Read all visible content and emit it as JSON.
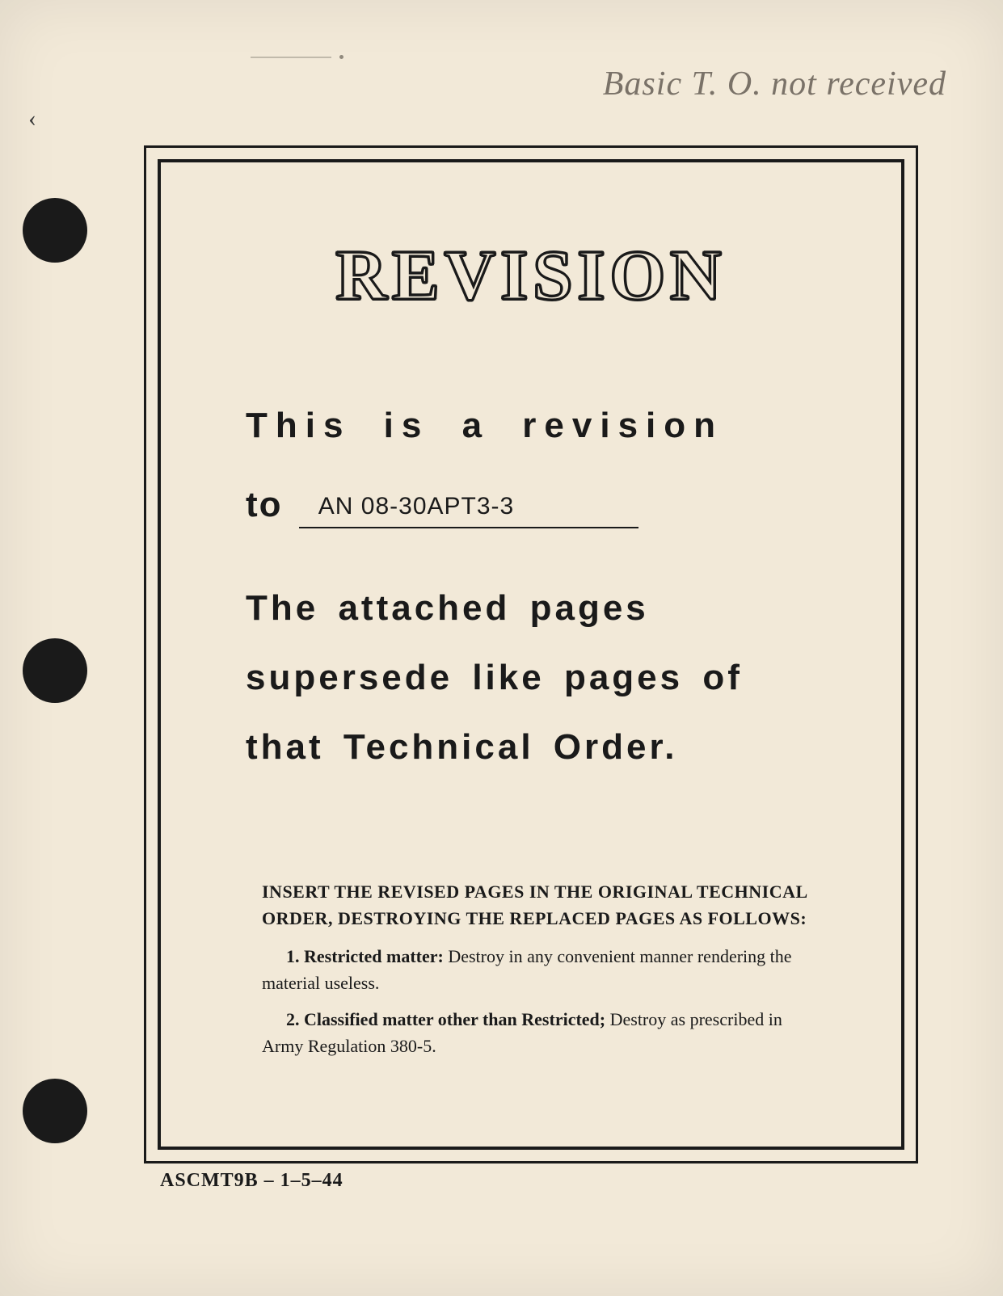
{
  "handwritten_note": "Basic T. O. not received",
  "title": "REVISION",
  "body": {
    "line1": "This is a revision",
    "to_label": "to",
    "doc_number": "AN 08-30APT3-3",
    "paragraph": "The attached pages supersede like pages of that Technical Order."
  },
  "instructions": {
    "heading": "INSERT THE REVISED PAGES IN THE ORIGINAL TECHNICAL ORDER, DESTROYING THE REPLACED PAGES AS FOLLOWS:",
    "item1_lead": "1.   Restricted matter:",
    "item1_rest": " Destroy in any convenient manner rendering the material useless.",
    "item2_lead": "2.   Classified matter other than Restricted;",
    "item2_rest": " Destroy as prescribed in Army Regulation 380-5."
  },
  "footer": "ASCMT9B – 1–5–44",
  "colors": {
    "paper": "#f2e9d8",
    "ink": "#1a1a1a",
    "pencil": "#7a7268",
    "background": "#d4cdc0"
  }
}
